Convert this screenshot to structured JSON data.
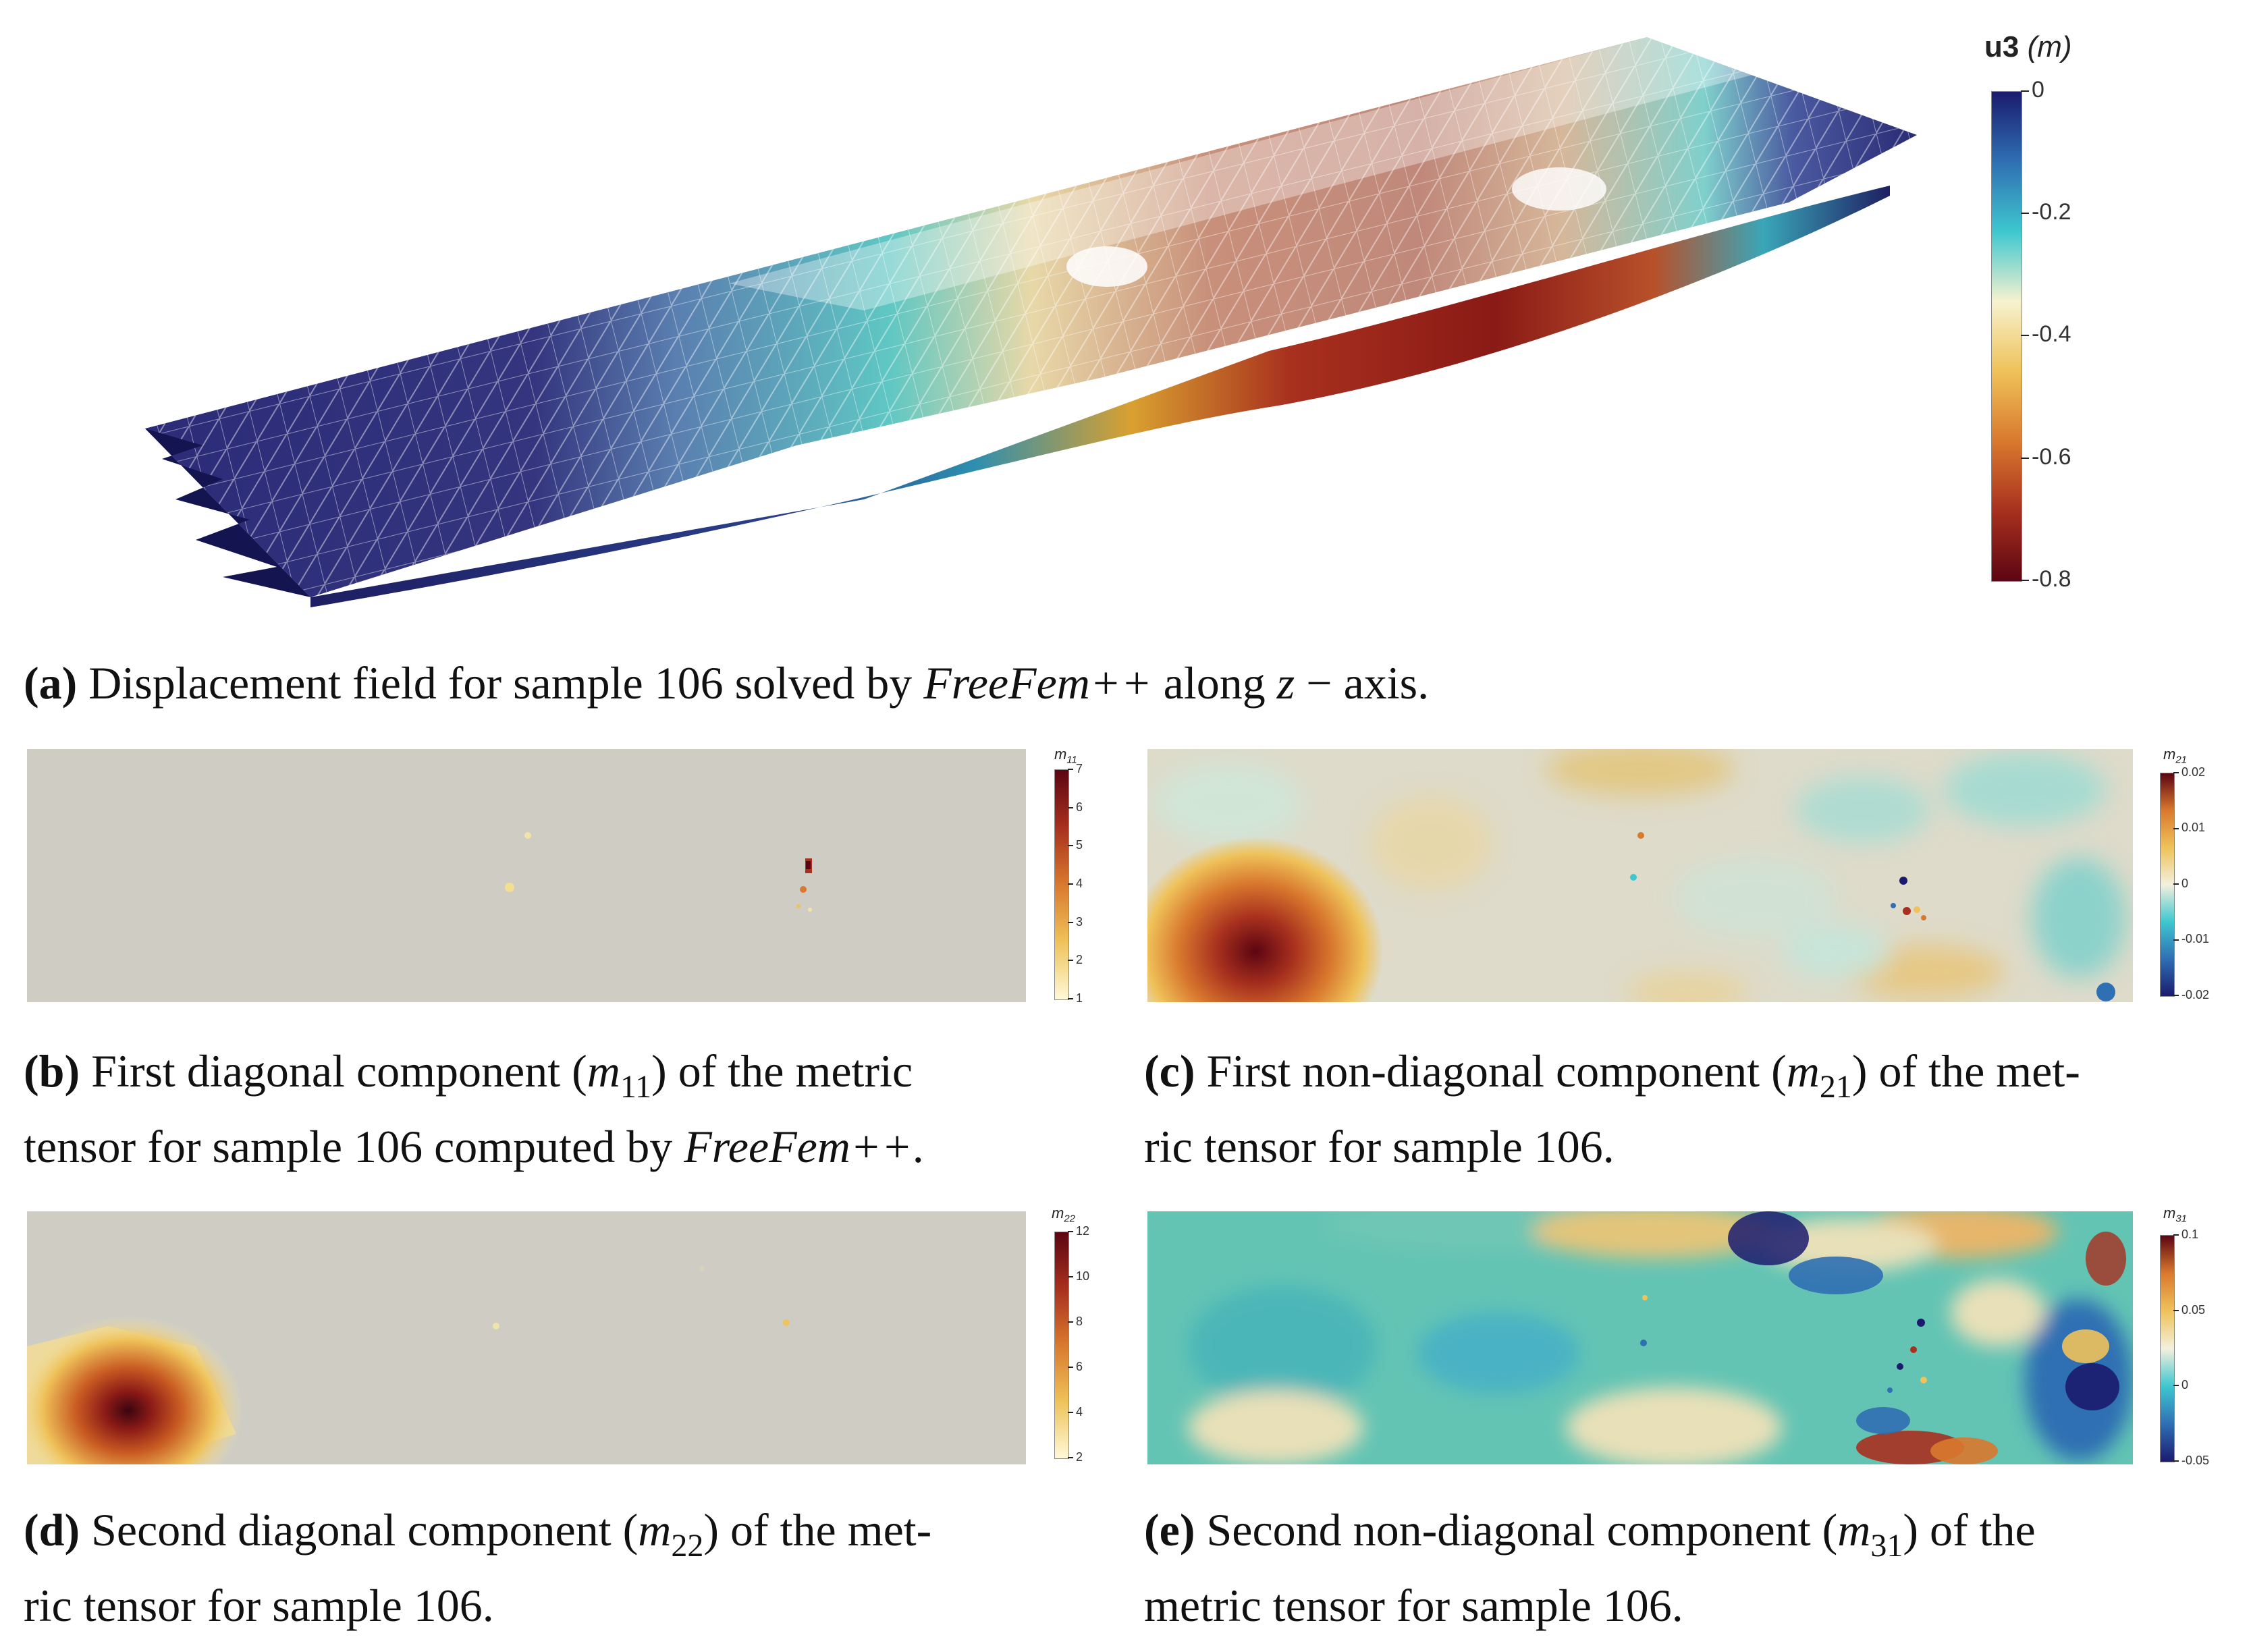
{
  "panel_a": {
    "colorbar": {
      "title_bold": "u3",
      "title_unit": "(m)",
      "ticks": [
        "0",
        "-0.2",
        "-0.4",
        "-0.6",
        "-0.8"
      ],
      "colors": [
        "#1b1b6e",
        "#2f6fb3",
        "#3ec7cf",
        "#f6f2cf",
        "#efc25a",
        "#d9792e",
        "#a8301e",
        "#5c0512"
      ]
    },
    "caption": {
      "label": "(a)",
      "text_1": " Displacement field for sample 106 solved by ",
      "italic_1": "FreeFem++",
      "text_2": " along ",
      "italic_2": "z",
      "text_3": " − axis."
    }
  },
  "panel_b": {
    "colorbar": {
      "title_base": "m",
      "title_sub": "11",
      "ticks": [
        "7",
        "6",
        "5",
        "4",
        "3",
        "2",
        "1"
      ],
      "colors": [
        "#5c0512",
        "#a8301e",
        "#d9792e",
        "#efc25a",
        "#fff9d8"
      ]
    },
    "caption": {
      "label": "(b)",
      "line1_a": " First diagonal component (",
      "var": "m",
      "sub": "11",
      "line1_b": ") of the metric",
      "line2_a": "tensor for sample 106 computed by ",
      "line2_italic": "FreeFem++",
      "line2_b": "."
    }
  },
  "panel_c": {
    "colorbar": {
      "title_base": "m",
      "title_sub": "21",
      "ticks": [
        "0.02",
        "0.01",
        "0",
        "-0.01",
        "-0.02"
      ],
      "colors": [
        "#5c0512",
        "#d9792e",
        "#efc25a",
        "#f3f0dd",
        "#3ec7cf",
        "#2f6fb3",
        "#1b1b6e"
      ]
    },
    "caption": {
      "label": "(c)",
      "line1_a": " First non-diagonal component (",
      "var": "m",
      "sub": "21",
      "line1_b": ") of the met-",
      "line2": "ric tensor for sample 106."
    }
  },
  "panel_d": {
    "colorbar": {
      "title_base": "m",
      "title_sub": "22",
      "ticks": [
        "12",
        "10",
        "8",
        "6",
        "4",
        "2"
      ],
      "colors": [
        "#5c0512",
        "#a8301e",
        "#d9792e",
        "#efc25a",
        "#fff9d8"
      ]
    },
    "caption": {
      "label": "(d)",
      "line1_a": " Second diagonal component (",
      "var": "m",
      "sub": "22",
      "line1_b": ") of the met-",
      "line2": "ric tensor for sample 106."
    }
  },
  "panel_e": {
    "colorbar": {
      "title_base": "m",
      "title_sub": "31",
      "ticks": [
        "0.1",
        "0.05",
        "0",
        "-0.05"
      ],
      "colors": [
        "#5c0512",
        "#d9792e",
        "#efc25a",
        "#f3f0dd",
        "#3ec7cf",
        "#2f6fb3",
        "#1b1b6e"
      ]
    },
    "caption": {
      "label": "(e)",
      "line1_a": " Second non-diagonal component (",
      "var": "m",
      "sub": "31",
      "line1_b": ") of the",
      "line2": "metric tensor for sample 106."
    }
  }
}
